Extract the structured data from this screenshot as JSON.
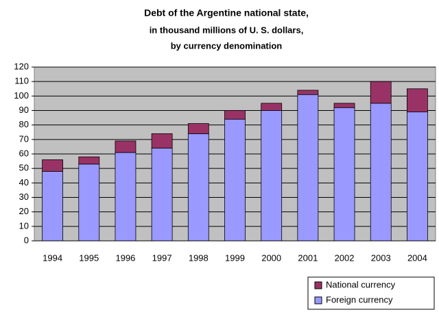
{
  "chart_data": {
    "type": "stacked_bar",
    "title": "Debt of the Argentine national state,",
    "subtitle": [
      "in thousand millions of U. S. dollars,",
      "by currency denomination"
    ],
    "categories": [
      "1994",
      "1995",
      "1996",
      "1997",
      "1998",
      "1999",
      "2000",
      "2001",
      "2002",
      "2003",
      "2004"
    ],
    "series": [
      {
        "name": "Foreign currency",
        "color": "#9999ff",
        "values": [
          48,
          53,
          61,
          64,
          74,
          84,
          90,
          101,
          92,
          95,
          89
        ]
      },
      {
        "name": "National currency",
        "color": "#993366",
        "values": [
          8,
          5,
          8,
          10,
          7,
          6,
          5,
          3,
          3,
          15,
          16
        ]
      }
    ],
    "ylim": [
      0,
      120
    ],
    "yticks": [
      0,
      10,
      20,
      30,
      40,
      50,
      60,
      70,
      80,
      90,
      100,
      110,
      120
    ],
    "grid": true,
    "legend": "bottom-right",
    "plot_background": "#c0c0c0"
  }
}
